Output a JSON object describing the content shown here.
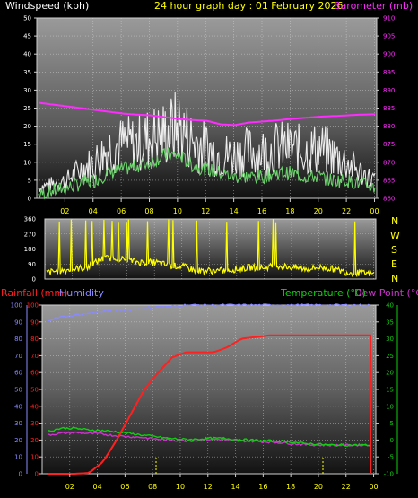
{
  "colors": {
    "windspeed": "#ffffff",
    "gust_avg": "#6bd36b",
    "barometer": "#ff2cff",
    "direction": "#ffff00",
    "rainfall": "#ff2020",
    "humidity": "#8a8aff",
    "temperature": "#10d010",
    "dewpoint": "#cc33cc",
    "axis_text": "#ffff00",
    "background": "#000000"
  },
  "header": {
    "left": "Windspeed (kph)",
    "center": "24 hour graph day : 01 February 2026",
    "right": "Barometer (mb)"
  },
  "direction_labels": [
    "N",
    "W",
    "S",
    "E",
    "N"
  ],
  "bottom_header": {
    "rain": "Rainfall (mm)",
    "humidity": "Humidity",
    "temperature": "Temperature (°C)",
    "dewpoint": "Dew Point (°C)"
  },
  "chart_data": [
    {
      "type": "line",
      "x_ticks": [
        "02",
        "04",
        "06",
        "08",
        "10",
        "12",
        "14",
        "16",
        "18",
        "20",
        "22",
        "00"
      ],
      "y_left_ticks": [
        "0",
        "5",
        "10",
        "15",
        "20",
        "25",
        "30",
        "35",
        "40",
        "45",
        "50"
      ],
      "y_left_lim": [
        0,
        50
      ],
      "y_right_ticks": [
        "860",
        "865",
        "870",
        "875",
        "880",
        "885",
        "890",
        "895",
        "900",
        "905",
        "910"
      ],
      "y_right_lim": [
        860,
        910
      ],
      "x": [
        0,
        1,
        2,
        3,
        4,
        5,
        6,
        7,
        8,
        9,
        10,
        11,
        12,
        13,
        14,
        15,
        16,
        17,
        18,
        19,
        20,
        21,
        22,
        23,
        24
      ],
      "series": [
        {
          "key": "windspeed",
          "axis": "left",
          "values": [
            3,
            4,
            5,
            8,
            10,
            14,
            15,
            15,
            17,
            18,
            20,
            16,
            14,
            12,
            12,
            13,
            13,
            14,
            14,
            13,
            14,
            12,
            10,
            7,
            5
          ]
        },
        {
          "key": "wind_avg",
          "axis": "left",
          "values": [
            1,
            2,
            3,
            4,
            5,
            7,
            8,
            9,
            10,
            12,
            12,
            9,
            8,
            7,
            6,
            6,
            6,
            7,
            7,
            6,
            6,
            5,
            5,
            4,
            3
          ]
        },
        {
          "key": "barometer",
          "axis": "right",
          "values": [
            886.5,
            886,
            885.5,
            885,
            884.5,
            884,
            883.5,
            883.2,
            883,
            882.5,
            882,
            881.7,
            881.5,
            880.5,
            880.3,
            881,
            881.3,
            881.6,
            882,
            882.3,
            882.6,
            882.8,
            883,
            883.2,
            883.3
          ]
        }
      ]
    },
    {
      "type": "line",
      "x_ticks": [],
      "y_ticks": [
        "0",
        "90",
        "180",
        "270",
        "360"
      ],
      "y_lim": [
        0,
        360
      ],
      "x": [
        0,
        1,
        2,
        3,
        4,
        5,
        6,
        7,
        8,
        9,
        10,
        11,
        12,
        13,
        14,
        15,
        16,
        17,
        18,
        19,
        20,
        21,
        22,
        23,
        24
      ],
      "series": [
        {
          "key": "direction",
          "values": [
            40,
            50,
            60,
            70,
            120,
            130,
            110,
            100,
            100,
            80,
            75,
            50,
            50,
            50,
            60,
            70,
            70,
            80,
            70,
            60,
            70,
            60,
            40,
            35,
            30
          ]
        }
      ]
    },
    {
      "type": "line",
      "x_ticks": [
        "02",
        "04",
        "06",
        "08",
        "10",
        "12",
        "14",
        "16",
        "18",
        "20",
        "22",
        "00"
      ],
      "y_left_ticks": [
        "0",
        "10",
        "20",
        "30",
        "40",
        "50",
        "60",
        "70",
        "80",
        "90",
        "100"
      ],
      "y_left_lim": [
        0,
        100
      ],
      "y_right_ticks": [
        "-10",
        "-5",
        "0",
        "5",
        "10",
        "15",
        "20",
        "25",
        "30",
        "35",
        "40"
      ],
      "y_right_lim": [
        -10,
        40
      ],
      "x": [
        0,
        1,
        2,
        3,
        4,
        5,
        6,
        7,
        8,
        9,
        10,
        11,
        12,
        13,
        14,
        15,
        16,
        17,
        18,
        19,
        20,
        21,
        22,
        23,
        24
      ],
      "series": [
        {
          "key": "rainfall",
          "axis": "rain",
          "values": [
            0,
            0,
            0,
            0.5,
            7,
            20,
            35,
            50,
            60,
            69,
            72,
            72,
            72,
            75,
            80,
            81,
            82,
            82,
            82,
            82,
            82,
            82,
            82,
            82,
            0
          ]
        },
        {
          "key": "humidity",
          "axis": "rain",
          "values": [
            91,
            93,
            94,
            95,
            96,
            97,
            97,
            98,
            99,
            99,
            100,
            100,
            100,
            100,
            100,
            100,
            100,
            100,
            100,
            100,
            100,
            100,
            100,
            100,
            100
          ]
        },
        {
          "key": "temperature",
          "axis": "temp",
          "values": [
            2.5,
            3.5,
            3.5,
            3,
            2.8,
            2.5,
            2,
            1.5,
            1,
            0.5,
            0.2,
            0.2,
            0.5,
            0.5,
            0.2,
            0,
            -0.2,
            -0.3,
            -0.5,
            -1,
            -1.2,
            -1.5,
            -1.5,
            -1.5,
            -1.5
          ]
        },
        {
          "key": "dewpoint",
          "axis": "temp",
          "values": [
            1.5,
            2,
            2.2,
            2,
            1.8,
            1.3,
            1,
            0.8,
            0.3,
            0,
            -0.2,
            -0.2,
            0.2,
            0.2,
            -0.3,
            -0.3,
            -0.5,
            -0.7,
            -1,
            -1.3,
            -1.5,
            -1.5,
            -1.5,
            -1.5,
            -1.5
          ]
        }
      ]
    }
  ]
}
